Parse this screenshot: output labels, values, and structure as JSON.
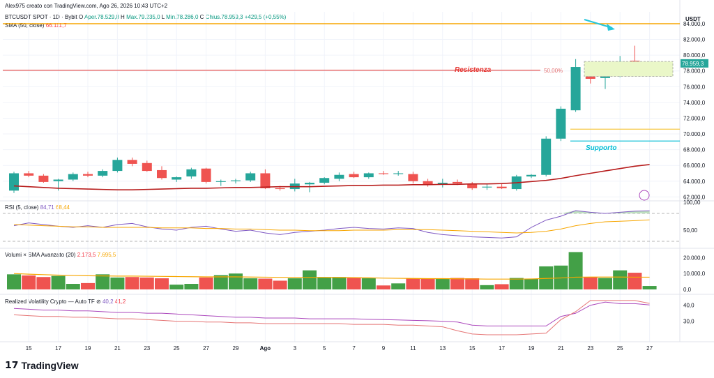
{
  "header": {
    "attribution": "Alex975 creato con TradingView.com, Ago 26, 2026 10:43 UTC+2",
    "symbol": "BTCUSDT SPOT · 1D · Bybit",
    "open_label": "O",
    "open": "Aper.78.529,8",
    "high_label": "H",
    "high": "Max.79.235,0",
    "low_label": "L",
    "low": "Min.78.286,0",
    "close_label": "C",
    "close": "Chius.78.959,3",
    "change": "+429,5 (+0,55%)",
    "sma_label": "SMA (50, close)",
    "sma_value": "66.111,7"
  },
  "price_axis": {
    "currency": "USDT",
    "ticks": [
      "84.000,0",
      "82.000,0",
      "80.000,0",
      "78.000,0",
      "76.000,0",
      "74.000,0",
      "72.000,0",
      "70.000,0",
      "68.000,0",
      "66.000,0",
      "64.000,0",
      "62.000,0"
    ],
    "last_price": "78.959,3"
  },
  "annotations": {
    "resistance": "Resistenza",
    "support": "Supporto",
    "fib": "50,00%"
  },
  "rsi": {
    "label": "RSI (5, close)",
    "value": "84,71",
    "ma_value": "68,44",
    "ticks": [
      "100,00",
      "50,00"
    ]
  },
  "volume": {
    "label": "Volumi × SMA Avanzato (20)",
    "value": "2.173,5",
    "ma_value": "7.695,5",
    "ticks": [
      "20.000,0",
      "10.000,0",
      "0,0"
    ]
  },
  "volatility": {
    "label": "Realized Volatility Crypto — Auto TF",
    "value1": "40,2",
    "value2": "41,2",
    "ticks": [
      "40,0",
      "30,0"
    ]
  },
  "x_axis": {
    "ticks": [
      "15",
      "17",
      "19",
      "21",
      "23",
      "25",
      "27",
      "29",
      "Ago",
      "3",
      "5",
      "7",
      "9",
      "11",
      "13",
      "15",
      "17",
      "19",
      "21",
      "23",
      "25",
      "27"
    ]
  },
  "brand": "TradingView",
  "colors": {
    "up": "#26a69a",
    "down": "#ef5350",
    "sma": "#b71c1c",
    "resistance": "#e53935",
    "support": "#00bcd4",
    "orange": "#f7a600",
    "rsi": "#7e57c2",
    "volg": "#43a047"
  },
  "chart_data": {
    "type": "candlestick",
    "ylim": [
      61500,
      85500
    ],
    "candles": [
      {
        "o": 62800,
        "h": 65200,
        "l": 62500,
        "c": 65000
      },
      {
        "o": 65000,
        "h": 65300,
        "l": 64500,
        "c": 64700
      },
      {
        "o": 64700,
        "h": 64900,
        "l": 63800,
        "c": 63900
      },
      {
        "o": 64000,
        "h": 64300,
        "l": 62800,
        "c": 64200
      },
      {
        "o": 64200,
        "h": 65100,
        "l": 64000,
        "c": 64900
      },
      {
        "o": 64900,
        "h": 65200,
        "l": 64500,
        "c": 64700
      },
      {
        "o": 64700,
        "h": 65500,
        "l": 64500,
        "c": 65300
      },
      {
        "o": 65300,
        "h": 67000,
        "l": 65100,
        "c": 66700
      },
      {
        "o": 66700,
        "h": 67000,
        "l": 65900,
        "c": 66200
      },
      {
        "o": 66300,
        "h": 66600,
        "l": 65200,
        "c": 65300
      },
      {
        "o": 65400,
        "h": 65900,
        "l": 64200,
        "c": 64400
      },
      {
        "o": 64200,
        "h": 64600,
        "l": 63900,
        "c": 64500
      },
      {
        "o": 64600,
        "h": 65700,
        "l": 64300,
        "c": 65500
      },
      {
        "o": 65600,
        "h": 65700,
        "l": 63700,
        "c": 63900
      },
      {
        "o": 63900,
        "h": 64200,
        "l": 63400,
        "c": 64000
      },
      {
        "o": 64000,
        "h": 64300,
        "l": 63700,
        "c": 64100
      },
      {
        "o": 64100,
        "h": 65200,
        "l": 63900,
        "c": 65000
      },
      {
        "o": 65000,
        "h": 65500,
        "l": 63000,
        "c": 63100
      },
      {
        "o": 63100,
        "h": 63400,
        "l": 62800,
        "c": 63000
      },
      {
        "o": 63000,
        "h": 64300,
        "l": 62700,
        "c": 63700
      },
      {
        "o": 63600,
        "h": 63900,
        "l": 62600,
        "c": 63800
      },
      {
        "o": 63800,
        "h": 64500,
        "l": 63600,
        "c": 64400
      },
      {
        "o": 64300,
        "h": 65100,
        "l": 64000,
        "c": 64800
      },
      {
        "o": 64900,
        "h": 65200,
        "l": 64400,
        "c": 64500
      },
      {
        "o": 64500,
        "h": 65100,
        "l": 64300,
        "c": 65000
      },
      {
        "o": 65000,
        "h": 65300,
        "l": 64800,
        "c": 64900
      },
      {
        "o": 64900,
        "h": 65300,
        "l": 64700,
        "c": 65000
      },
      {
        "o": 64900,
        "h": 65200,
        "l": 63700,
        "c": 64000
      },
      {
        "o": 64000,
        "h": 64300,
        "l": 63300,
        "c": 63600
      },
      {
        "o": 63600,
        "h": 64300,
        "l": 63200,
        "c": 63800
      },
      {
        "o": 63900,
        "h": 64200,
        "l": 63500,
        "c": 63700
      },
      {
        "o": 63600,
        "h": 63900,
        "l": 62900,
        "c": 63100
      },
      {
        "o": 63200,
        "h": 63600,
        "l": 62900,
        "c": 63300
      },
      {
        "o": 63300,
        "h": 63700,
        "l": 63000,
        "c": 63100
      },
      {
        "o": 63000,
        "h": 64800,
        "l": 62800,
        "c": 64600
      },
      {
        "o": 64600,
        "h": 64900,
        "l": 64400,
        "c": 64800
      },
      {
        "o": 64800,
        "h": 69700,
        "l": 64600,
        "c": 69400
      },
      {
        "o": 69400,
        "h": 73500,
        "l": 69100,
        "c": 73200
      },
      {
        "o": 73000,
        "h": 79500,
        "l": 72800,
        "c": 78500
      },
      {
        "o": 78500,
        "h": 78800,
        "l": 76400,
        "c": 77000
      },
      {
        "o": 77100,
        "h": 78100,
        "l": 75700,
        "c": 77800
      },
      {
        "o": 77800,
        "h": 79900,
        "l": 77200,
        "c": 79200
      },
      {
        "o": 79300,
        "h": 81200,
        "l": 78600,
        "c": 78700
      },
      {
        "o": 78600,
        "h": 79200,
        "l": 78200,
        "c": 78950
      }
    ],
    "sma": [
      63400,
      63300,
      63200,
      63100,
      63050,
      63000,
      62950,
      62900,
      62900,
      62950,
      63000,
      63050,
      63100,
      63100,
      63150,
      63200,
      63200,
      63250,
      63300,
      63300,
      63300,
      63350,
      63400,
      63450,
      63450,
      63500,
      63500,
      63550,
      63550,
      63600,
      63600,
      63650,
      63650,
      63700,
      63800,
      63950,
      64100,
      64350,
      64700,
      65000,
      65300,
      65600,
      65900,
      66111
    ],
    "resistance": 78100,
    "support_upper": 70600,
    "support": 69100,
    "volume_bars": [
      9500,
      8800,
      7800,
      8500,
      3500,
      4000,
      9500,
      7500,
      7800,
      7500,
      7000,
      3000,
      3500,
      7500,
      9000,
      10000,
      7000,
      6800,
      5500,
      7000,
      12000,
      7500,
      7800,
      7500,
      7000,
      2500,
      3800,
      6800,
      6900,
      6800,
      7200,
      7000,
      2700,
      3300,
      7200,
      6800,
      14500,
      15000,
      23500,
      7800,
      7200,
      12000,
      10500,
      2173
    ],
    "volume_ma": [
      10000,
      9600,
      9300,
      9000,
      8800,
      8600,
      8500,
      8400,
      8400,
      8300,
      8200,
      8100,
      8000,
      7900,
      7900,
      7900,
      7800,
      7700,
      7600,
      7600,
      7600,
      7600,
      7500,
      7400,
      7300,
      7100,
      7000,
      6900,
      6800,
      6800,
      6700,
      6600,
      6500,
      6500,
      6500,
      6600,
      6900,
      7200,
      7700,
      7800,
      7800,
      7800,
      7700,
      7695
    ],
    "rsi": [
      58,
      63,
      60,
      57,
      55,
      58,
      55,
      60,
      62,
      56,
      52,
      50,
      55,
      57,
      52,
      48,
      50,
      45,
      42,
      46,
      48,
      50,
      53,
      55,
      53,
      52,
      54,
      53,
      46,
      42,
      40,
      38,
      37,
      36,
      38,
      55,
      68,
      75,
      85,
      82,
      80,
      82,
      84,
      84.71
    ],
    "rsi_ma": [
      60,
      59,
      58,
      57,
      56,
      56,
      55,
      55,
      55,
      55,
      54,
      54,
      54,
      53,
      53,
      52,
      52,
      51,
      50,
      50,
      49,
      49,
      49,
      50,
      50,
      50,
      51,
      51,
      51,
      50,
      49,
      48,
      47,
      46,
      45,
      46,
      48,
      52,
      58,
      62,
      65,
      66,
      67,
      68.44
    ],
    "vol1": [
      38,
      37.5,
      37,
      37,
      36.5,
      36.5,
      36,
      35.5,
      35.5,
      35,
      35,
      34.5,
      34,
      33.5,
      33,
      32.5,
      32.5,
      32,
      32,
      32,
      31.5,
      31.5,
      31.5,
      31.5,
      31.2,
      31,
      30.8,
      30.5,
      30.3,
      30,
      29.5,
      27.5,
      27,
      27,
      27,
      27,
      27,
      33,
      35,
      40,
      42,
      41,
      41,
      40.2
    ],
    "vol2": [
      34,
      33.5,
      33,
      33,
      32.5,
      32.5,
      32,
      31.5,
      31.5,
      31,
      30.5,
      30,
      30,
      29.5,
      29.5,
      29,
      29,
      28.5,
      28.5,
      28.5,
      28.5,
      28.5,
      28.5,
      28,
      28,
      28,
      27.5,
      27.5,
      27,
      26.5,
      24,
      22,
      21.5,
      21.5,
      21.5,
      22,
      22.5,
      31,
      36,
      43,
      43,
      43,
      43,
      41.2
    ]
  }
}
